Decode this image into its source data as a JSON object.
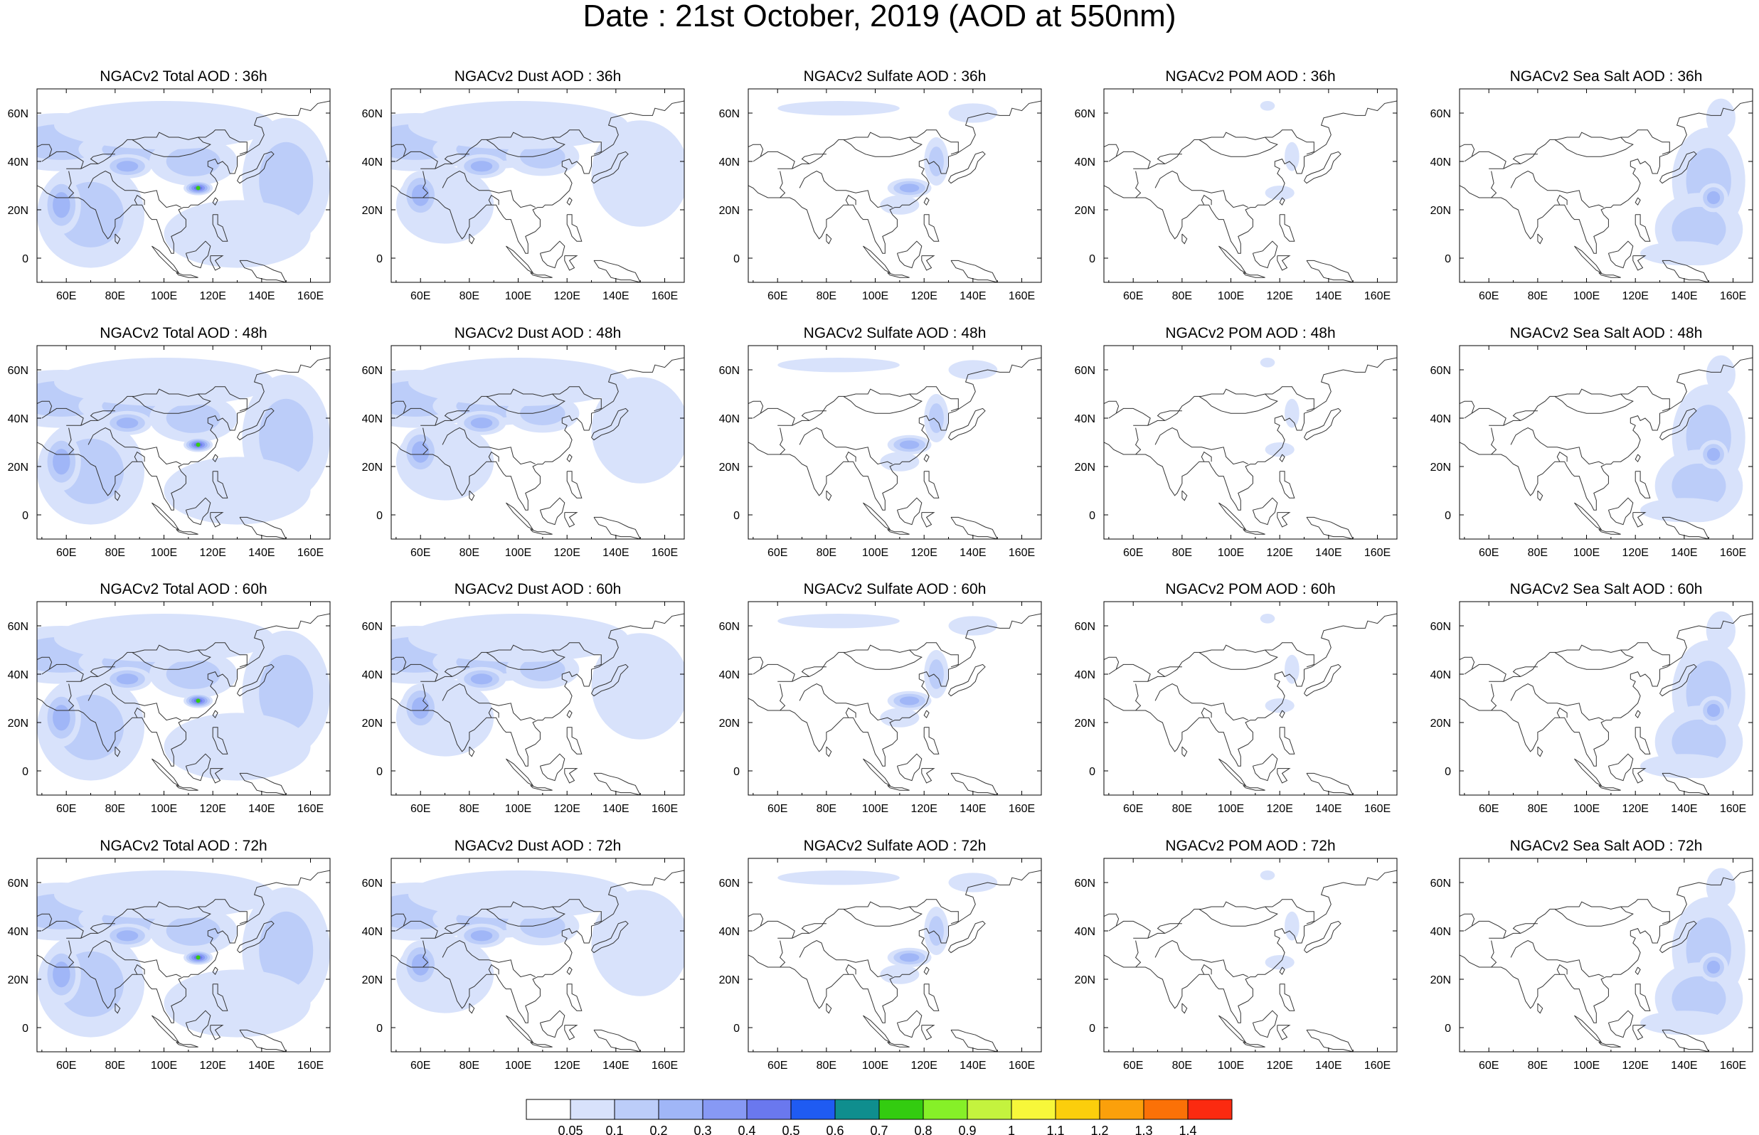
{
  "figure_title": "Date : 21st October, 2019 (AOD at 550nm)",
  "chart_data": [
    {
      "type": "heatmap",
      "title": "NGACv2 Total AOD : 36h",
      "xticks": [
        "60E",
        "80E",
        "100E",
        "120E",
        "140E",
        "160E"
      ],
      "yticks": [
        "60N",
        "40N",
        "20N",
        "0"
      ],
      "xlim": [
        48,
        168
      ],
      "ylim": [
        -10,
        70
      ],
      "grid": false
    },
    {
      "type": "heatmap",
      "title": "NGACv2 Dust AOD : 36h",
      "xticks": [
        "60E",
        "80E",
        "100E",
        "120E",
        "140E",
        "160E"
      ],
      "yticks": [
        "60N",
        "40N",
        "20N",
        "0"
      ],
      "xlim": [
        48,
        168
      ],
      "ylim": [
        -10,
        70
      ],
      "grid": false
    },
    {
      "type": "heatmap",
      "title": "NGACv2 Sulfate AOD : 36h",
      "xticks": [
        "60E",
        "80E",
        "100E",
        "120E",
        "140E",
        "160E"
      ],
      "yticks": [
        "60N",
        "40N",
        "20N",
        "0"
      ],
      "xlim": [
        48,
        168
      ],
      "ylim": [
        -10,
        70
      ],
      "grid": false
    },
    {
      "type": "heatmap",
      "title": "NGACv2 POM AOD : 36h",
      "xticks": [
        "60E",
        "80E",
        "100E",
        "120E",
        "140E",
        "160E"
      ],
      "yticks": [
        "60N",
        "40N",
        "20N",
        "0"
      ],
      "xlim": [
        48,
        168
      ],
      "ylim": [
        -10,
        70
      ],
      "grid": false
    },
    {
      "type": "heatmap",
      "title": "NGACv2 Sea Salt AOD : 36h",
      "xticks": [
        "60E",
        "80E",
        "100E",
        "120E",
        "140E",
        "160E"
      ],
      "yticks": [
        "60N",
        "40N",
        "20N",
        "0"
      ],
      "xlim": [
        48,
        168
      ],
      "ylim": [
        -10,
        70
      ],
      "grid": false
    },
    {
      "type": "heatmap",
      "title": "NGACv2 Total AOD : 48h",
      "xticks": [
        "60E",
        "80E",
        "100E",
        "120E",
        "140E",
        "160E"
      ],
      "yticks": [
        "60N",
        "40N",
        "20N",
        "0"
      ],
      "xlim": [
        48,
        168
      ],
      "ylim": [
        -10,
        70
      ],
      "grid": false
    },
    {
      "type": "heatmap",
      "title": "NGACv2 Dust AOD : 48h",
      "xticks": [
        "60E",
        "80E",
        "100E",
        "120E",
        "140E",
        "160E"
      ],
      "yticks": [
        "60N",
        "40N",
        "20N",
        "0"
      ],
      "xlim": [
        48,
        168
      ],
      "ylim": [
        -10,
        70
      ],
      "grid": false
    },
    {
      "type": "heatmap",
      "title": "NGACv2 Sulfate AOD : 48h",
      "xticks": [
        "60E",
        "80E",
        "100E",
        "120E",
        "140E",
        "160E"
      ],
      "yticks": [
        "60N",
        "40N",
        "20N",
        "0"
      ],
      "xlim": [
        48,
        168
      ],
      "ylim": [
        -10,
        70
      ],
      "grid": false
    },
    {
      "type": "heatmap",
      "title": "NGACv2 POM AOD : 48h",
      "xticks": [
        "60E",
        "80E",
        "100E",
        "120E",
        "140E",
        "160E"
      ],
      "yticks": [
        "60N",
        "40N",
        "20N",
        "0"
      ],
      "xlim": [
        48,
        168
      ],
      "ylim": [
        -10,
        70
      ],
      "grid": false
    },
    {
      "type": "heatmap",
      "title": "NGACv2 Sea Salt AOD : 48h",
      "xticks": [
        "60E",
        "80E",
        "100E",
        "120E",
        "140E",
        "160E"
      ],
      "yticks": [
        "60N",
        "40N",
        "20N",
        "0"
      ],
      "xlim": [
        48,
        168
      ],
      "ylim": [
        -10,
        70
      ],
      "grid": false
    },
    {
      "type": "heatmap",
      "title": "NGACv2 Total AOD : 60h",
      "xticks": [
        "60E",
        "80E",
        "100E",
        "120E",
        "140E",
        "160E"
      ],
      "yticks": [
        "60N",
        "40N",
        "20N",
        "0"
      ],
      "xlim": [
        48,
        168
      ],
      "ylim": [
        -10,
        70
      ],
      "grid": false
    },
    {
      "type": "heatmap",
      "title": "NGACv2 Dust AOD : 60h",
      "xticks": [
        "60E",
        "80E",
        "100E",
        "120E",
        "140E",
        "160E"
      ],
      "yticks": [
        "60N",
        "40N",
        "20N",
        "0"
      ],
      "xlim": [
        48,
        168
      ],
      "ylim": [
        -10,
        70
      ],
      "grid": false
    },
    {
      "type": "heatmap",
      "title": "NGACv2 Sulfate AOD : 60h",
      "xticks": [
        "60E",
        "80E",
        "100E",
        "120E",
        "140E",
        "160E"
      ],
      "yticks": [
        "60N",
        "40N",
        "20N",
        "0"
      ],
      "xlim": [
        48,
        168
      ],
      "ylim": [
        -10,
        70
      ],
      "grid": false
    },
    {
      "type": "heatmap",
      "title": "NGACv2 POM AOD : 60h",
      "xticks": [
        "60E",
        "80E",
        "100E",
        "120E",
        "140E",
        "160E"
      ],
      "yticks": [
        "60N",
        "40N",
        "20N",
        "0"
      ],
      "xlim": [
        48,
        168
      ],
      "ylim": [
        -10,
        70
      ],
      "grid": false
    },
    {
      "type": "heatmap",
      "title": "NGACv2 Sea Salt AOD : 60h",
      "xticks": [
        "60E",
        "80E",
        "100E",
        "120E",
        "140E",
        "160E"
      ],
      "yticks": [
        "60N",
        "40N",
        "20N",
        "0"
      ],
      "xlim": [
        48,
        168
      ],
      "ylim": [
        -10,
        70
      ],
      "grid": false
    },
    {
      "type": "heatmap",
      "title": "NGACv2 Total AOD : 72h",
      "xticks": [
        "60E",
        "80E",
        "100E",
        "120E",
        "140E",
        "160E"
      ],
      "yticks": [
        "60N",
        "40N",
        "20N",
        "0"
      ],
      "xlim": [
        48,
        168
      ],
      "ylim": [
        -10,
        70
      ],
      "grid": false
    },
    {
      "type": "heatmap",
      "title": "NGACv2 Dust AOD : 72h",
      "xticks": [
        "60E",
        "80E",
        "100E",
        "120E",
        "140E",
        "160E"
      ],
      "yticks": [
        "60N",
        "40N",
        "20N",
        "0"
      ],
      "xlim": [
        48,
        168
      ],
      "ylim": [
        -10,
        70
      ],
      "grid": false
    },
    {
      "type": "heatmap",
      "title": "NGACv2 Sulfate AOD : 72h",
      "xticks": [
        "60E",
        "80E",
        "100E",
        "120E",
        "140E",
        "160E"
      ],
      "yticks": [
        "60N",
        "40N",
        "20N",
        "0"
      ],
      "xlim": [
        48,
        168
      ],
      "ylim": [
        -10,
        70
      ],
      "grid": false
    },
    {
      "type": "heatmap",
      "title": "NGACv2 POM AOD : 72h",
      "xticks": [
        "60E",
        "80E",
        "100E",
        "120E",
        "140E",
        "160E"
      ],
      "yticks": [
        "60N",
        "40N",
        "20N",
        "0"
      ],
      "xlim": [
        48,
        168
      ],
      "ylim": [
        -10,
        70
      ],
      "grid": false
    },
    {
      "type": "heatmap",
      "title": "NGACv2 Sea Salt  AOD : 72h",
      "xticks": [
        "60E",
        "80E",
        "100E",
        "120E",
        "140E",
        "160E"
      ],
      "yticks": [
        "60N",
        "40N",
        "20N",
        "0"
      ],
      "xlim": [
        48,
        168
      ],
      "ylim": [
        -10,
        70
      ],
      "grid": false
    }
  ],
  "colorbar": {
    "labels": [
      "0.05",
      "0.1",
      "0.2",
      "0.3",
      "0.4",
      "0.5",
      "0.6",
      "0.7",
      "0.8",
      "0.9",
      "1",
      "1.1",
      "1.2",
      "1.3",
      "1.4"
    ],
    "colors": [
      "#ffffff",
      "#d8e2fb",
      "#bccdf9",
      "#a0b6f7",
      "#8799f4",
      "#6a78ee",
      "#1f5bf2",
      "#0f8e8e",
      "#33cc10",
      "#86f028",
      "#c4f33e",
      "#f7f73a",
      "#fbce0c",
      "#fba00b",
      "#fb7107",
      "#fb2a10"
    ]
  }
}
